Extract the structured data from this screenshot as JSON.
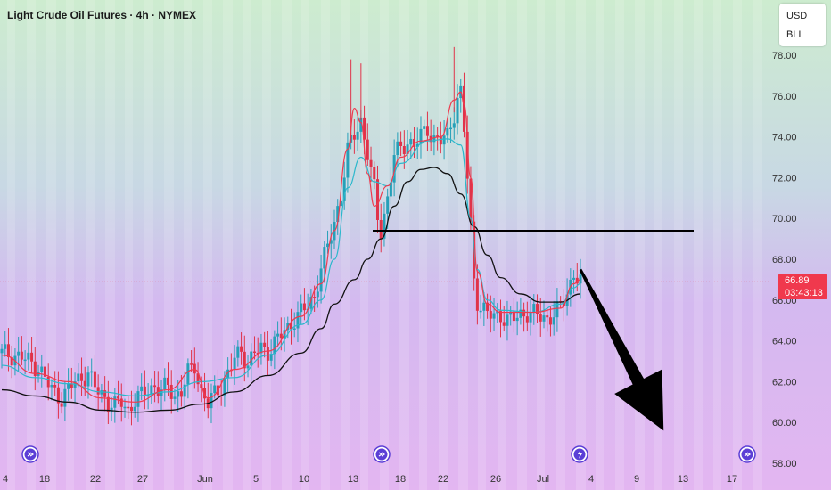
{
  "header": {
    "title": "Light Crude Oil Futures · 4h · NYMEX"
  },
  "currency_menu": {
    "currency": "USD",
    "unit": "BLL"
  },
  "price_tag": {
    "price": "66.89",
    "countdown": "03:43:13"
  },
  "colors": {
    "up": "#26a0b8",
    "down": "#e0334a",
    "ma_fast": "#f0394d",
    "ma_mid": "#2bb8cc",
    "ma_slow": "#111111",
    "annotation": "#000000",
    "bar_stripe": "#ffffff"
  },
  "icons": [
    "forward-event-icon",
    "forward-event-icon",
    "lightning-event-icon",
    "forward-event-icon"
  ],
  "chart_data": {
    "type": "candlestick",
    "y_ticks": [
      "78.00",
      "76.00",
      "74.00",
      "72.00",
      "70.00",
      "68.00",
      "66.00",
      "64.00",
      "62.00",
      "60.00",
      "58.00"
    ],
    "x_ticks": [
      "4",
      "18",
      "22",
      "27",
      "Jun",
      "5",
      "10",
      "13",
      "18",
      "22",
      "26",
      "Jul",
      "4",
      "9",
      "13",
      "17"
    ],
    "ylim": [
      58,
      79
    ],
    "last_price": 66.89,
    "horizontal_line": 69.4,
    "price_path": [
      [
        0,
        63.4
      ],
      [
        6,
        63.2
      ],
      [
        11,
        62.7
      ],
      [
        15,
        61.6
      ],
      [
        18,
        61.2
      ],
      [
        22,
        62.0
      ],
      [
        26,
        62.4
      ],
      [
        28,
        61.7
      ],
      [
        30,
        61.4
      ],
      [
        32,
        61.0
      ],
      [
        34,
        60.8
      ],
      [
        36,
        61.0
      ],
      [
        38,
        60.6
      ],
      [
        40,
        61.1
      ],
      [
        42,
        61.3
      ],
      [
        44,
        61.6
      ],
      [
        46,
        61.8
      ],
      [
        48,
        61.5
      ],
      [
        50,
        61.8
      ],
      [
        52,
        61.3
      ],
      [
        54,
        61.5
      ],
      [
        56,
        62.4
      ],
      [
        58,
        62.8
      ],
      [
        60,
        61.5
      ],
      [
        62,
        60.9
      ],
      [
        64,
        61.4
      ],
      [
        66,
        61.8
      ],
      [
        68,
        62.4
      ],
      [
        70,
        63.1
      ],
      [
        72,
        63.5
      ],
      [
        74,
        62.9
      ],
      [
        76,
        63.4
      ],
      [
        78,
        63.6
      ],
      [
        80,
        63.5
      ],
      [
        82,
        63.9
      ],
      [
        84,
        64.3
      ],
      [
        86,
        64.6
      ],
      [
        88,
        65.1
      ],
      [
        90,
        65.4
      ],
      [
        92,
        65.7
      ],
      [
        94,
        66.2
      ],
      [
        96,
        67.6
      ],
      [
        98,
        68.6
      ],
      [
        100,
        69.8
      ],
      [
        102,
        71.2
      ],
      [
        104,
        73.3
      ],
      [
        106,
        74.1
      ],
      [
        108,
        74.8
      ],
      [
        110,
        73.2
      ],
      [
        112,
        71.4
      ],
      [
        113,
        70.0
      ],
      [
        114,
        69.4
      ],
      [
        116,
        71.0
      ],
      [
        118,
        73.1
      ],
      [
        120,
        73.4
      ],
      [
        122,
        73.8
      ],
      [
        124,
        73.6
      ],
      [
        126,
        74.0
      ],
      [
        128,
        74.4
      ],
      [
        130,
        73.9
      ],
      [
        132,
        73.8
      ],
      [
        134,
        74.0
      ],
      [
        136,
        75.2
      ],
      [
        137,
        75.9
      ],
      [
        138,
        76.2
      ],
      [
        139,
        74.3
      ],
      [
        140,
        72.0
      ],
      [
        141,
        69.5
      ],
      [
        142,
        67.0
      ],
      [
        143,
        66.0
      ],
      [
        144,
        65.7
      ],
      [
        146,
        65.3
      ],
      [
        148,
        65.2
      ],
      [
        150,
        65.3
      ],
      [
        152,
        65.0
      ],
      [
        154,
        65.1
      ],
      [
        156,
        65.3
      ],
      [
        158,
        65.4
      ],
      [
        160,
        65.3
      ],
      [
        162,
        65.2
      ],
      [
        164,
        65.1
      ],
      [
        166,
        65.3
      ],
      [
        168,
        65.6
      ],
      [
        170,
        66.4
      ],
      [
        172,
        67.3
      ],
      [
        174,
        66.9
      ]
    ],
    "ma_fast": [
      [
        0,
        63.3
      ],
      [
        10,
        62.4
      ],
      [
        20,
        62.0
      ],
      [
        30,
        61.2
      ],
      [
        40,
        61.0
      ],
      [
        50,
        61.6
      ],
      [
        58,
        62.6
      ],
      [
        62,
        61.2
      ],
      [
        70,
        62.6
      ],
      [
        80,
        63.5
      ],
      [
        90,
        65.2
      ],
      [
        96,
        66.8
      ],
      [
        100,
        69.4
      ],
      [
        104,
        73.4
      ],
      [
        106,
        75.4
      ],
      [
        108,
        74.7
      ],
      [
        110,
        72.2
      ],
      [
        112,
        70.6
      ],
      [
        116,
        71.6
      ],
      [
        120,
        73.0
      ],
      [
        126,
        73.8
      ],
      [
        132,
        74.0
      ],
      [
        136,
        75.8
      ],
      [
        138,
        76.2
      ],
      [
        139,
        75.6
      ],
      [
        141,
        72.0
      ],
      [
        143,
        67.4
      ],
      [
        146,
        65.8
      ],
      [
        150,
        65.4
      ],
      [
        160,
        65.4
      ],
      [
        168,
        65.6
      ],
      [
        172,
        66.8
      ],
      [
        174,
        67.0
      ]
    ],
    "ma_mid": [
      [
        0,
        62.8
      ],
      [
        10,
        62.2
      ],
      [
        20,
        61.9
      ],
      [
        30,
        61.5
      ],
      [
        40,
        61.3
      ],
      [
        50,
        61.5
      ],
      [
        60,
        62.0
      ],
      [
        70,
        62.2
      ],
      [
        80,
        63.3
      ],
      [
        90,
        64.8
      ],
      [
        96,
        66.0
      ],
      [
        100,
        68.0
      ],
      [
        104,
        71.5
      ],
      [
        108,
        73.0
      ],
      [
        112,
        71.8
      ],
      [
        116,
        71.6
      ],
      [
        120,
        72.7
      ],
      [
        128,
        73.8
      ],
      [
        134,
        73.9
      ],
      [
        138,
        73.6
      ],
      [
        141,
        70.0
      ],
      [
        143,
        67.5
      ],
      [
        146,
        66.0
      ],
      [
        150,
        65.5
      ],
      [
        160,
        65.4
      ],
      [
        168,
        65.8
      ],
      [
        172,
        66.6
      ],
      [
        174,
        66.8
      ]
    ],
    "ma_slow": [
      [
        0,
        61.6
      ],
      [
        10,
        61.3
      ],
      [
        20,
        61.0
      ],
      [
        30,
        60.6
      ],
      [
        40,
        60.5
      ],
      [
        50,
        60.6
      ],
      [
        60,
        60.9
      ],
      [
        70,
        61.5
      ],
      [
        80,
        62.3
      ],
      [
        90,
        63.4
      ],
      [
        96,
        64.6
      ],
      [
        100,
        65.8
      ],
      [
        106,
        67.0
      ],
      [
        110,
        68.0
      ],
      [
        114,
        69.0
      ],
      [
        118,
        70.6
      ],
      [
        122,
        71.8
      ],
      [
        126,
        72.4
      ],
      [
        130,
        72.5
      ],
      [
        134,
        72.2
      ],
      [
        138,
        71.2
      ],
      [
        142,
        69.6
      ],
      [
        146,
        68.2
      ],
      [
        150,
        67.1
      ],
      [
        156,
        66.3
      ],
      [
        162,
        65.9
      ],
      [
        168,
        65.9
      ],
      [
        174,
        66.3
      ]
    ],
    "forecast_arrow": {
      "from": [
        174,
        67.5
      ],
      "to": [
        199,
        59.6
      ]
    },
    "grid": false
  }
}
